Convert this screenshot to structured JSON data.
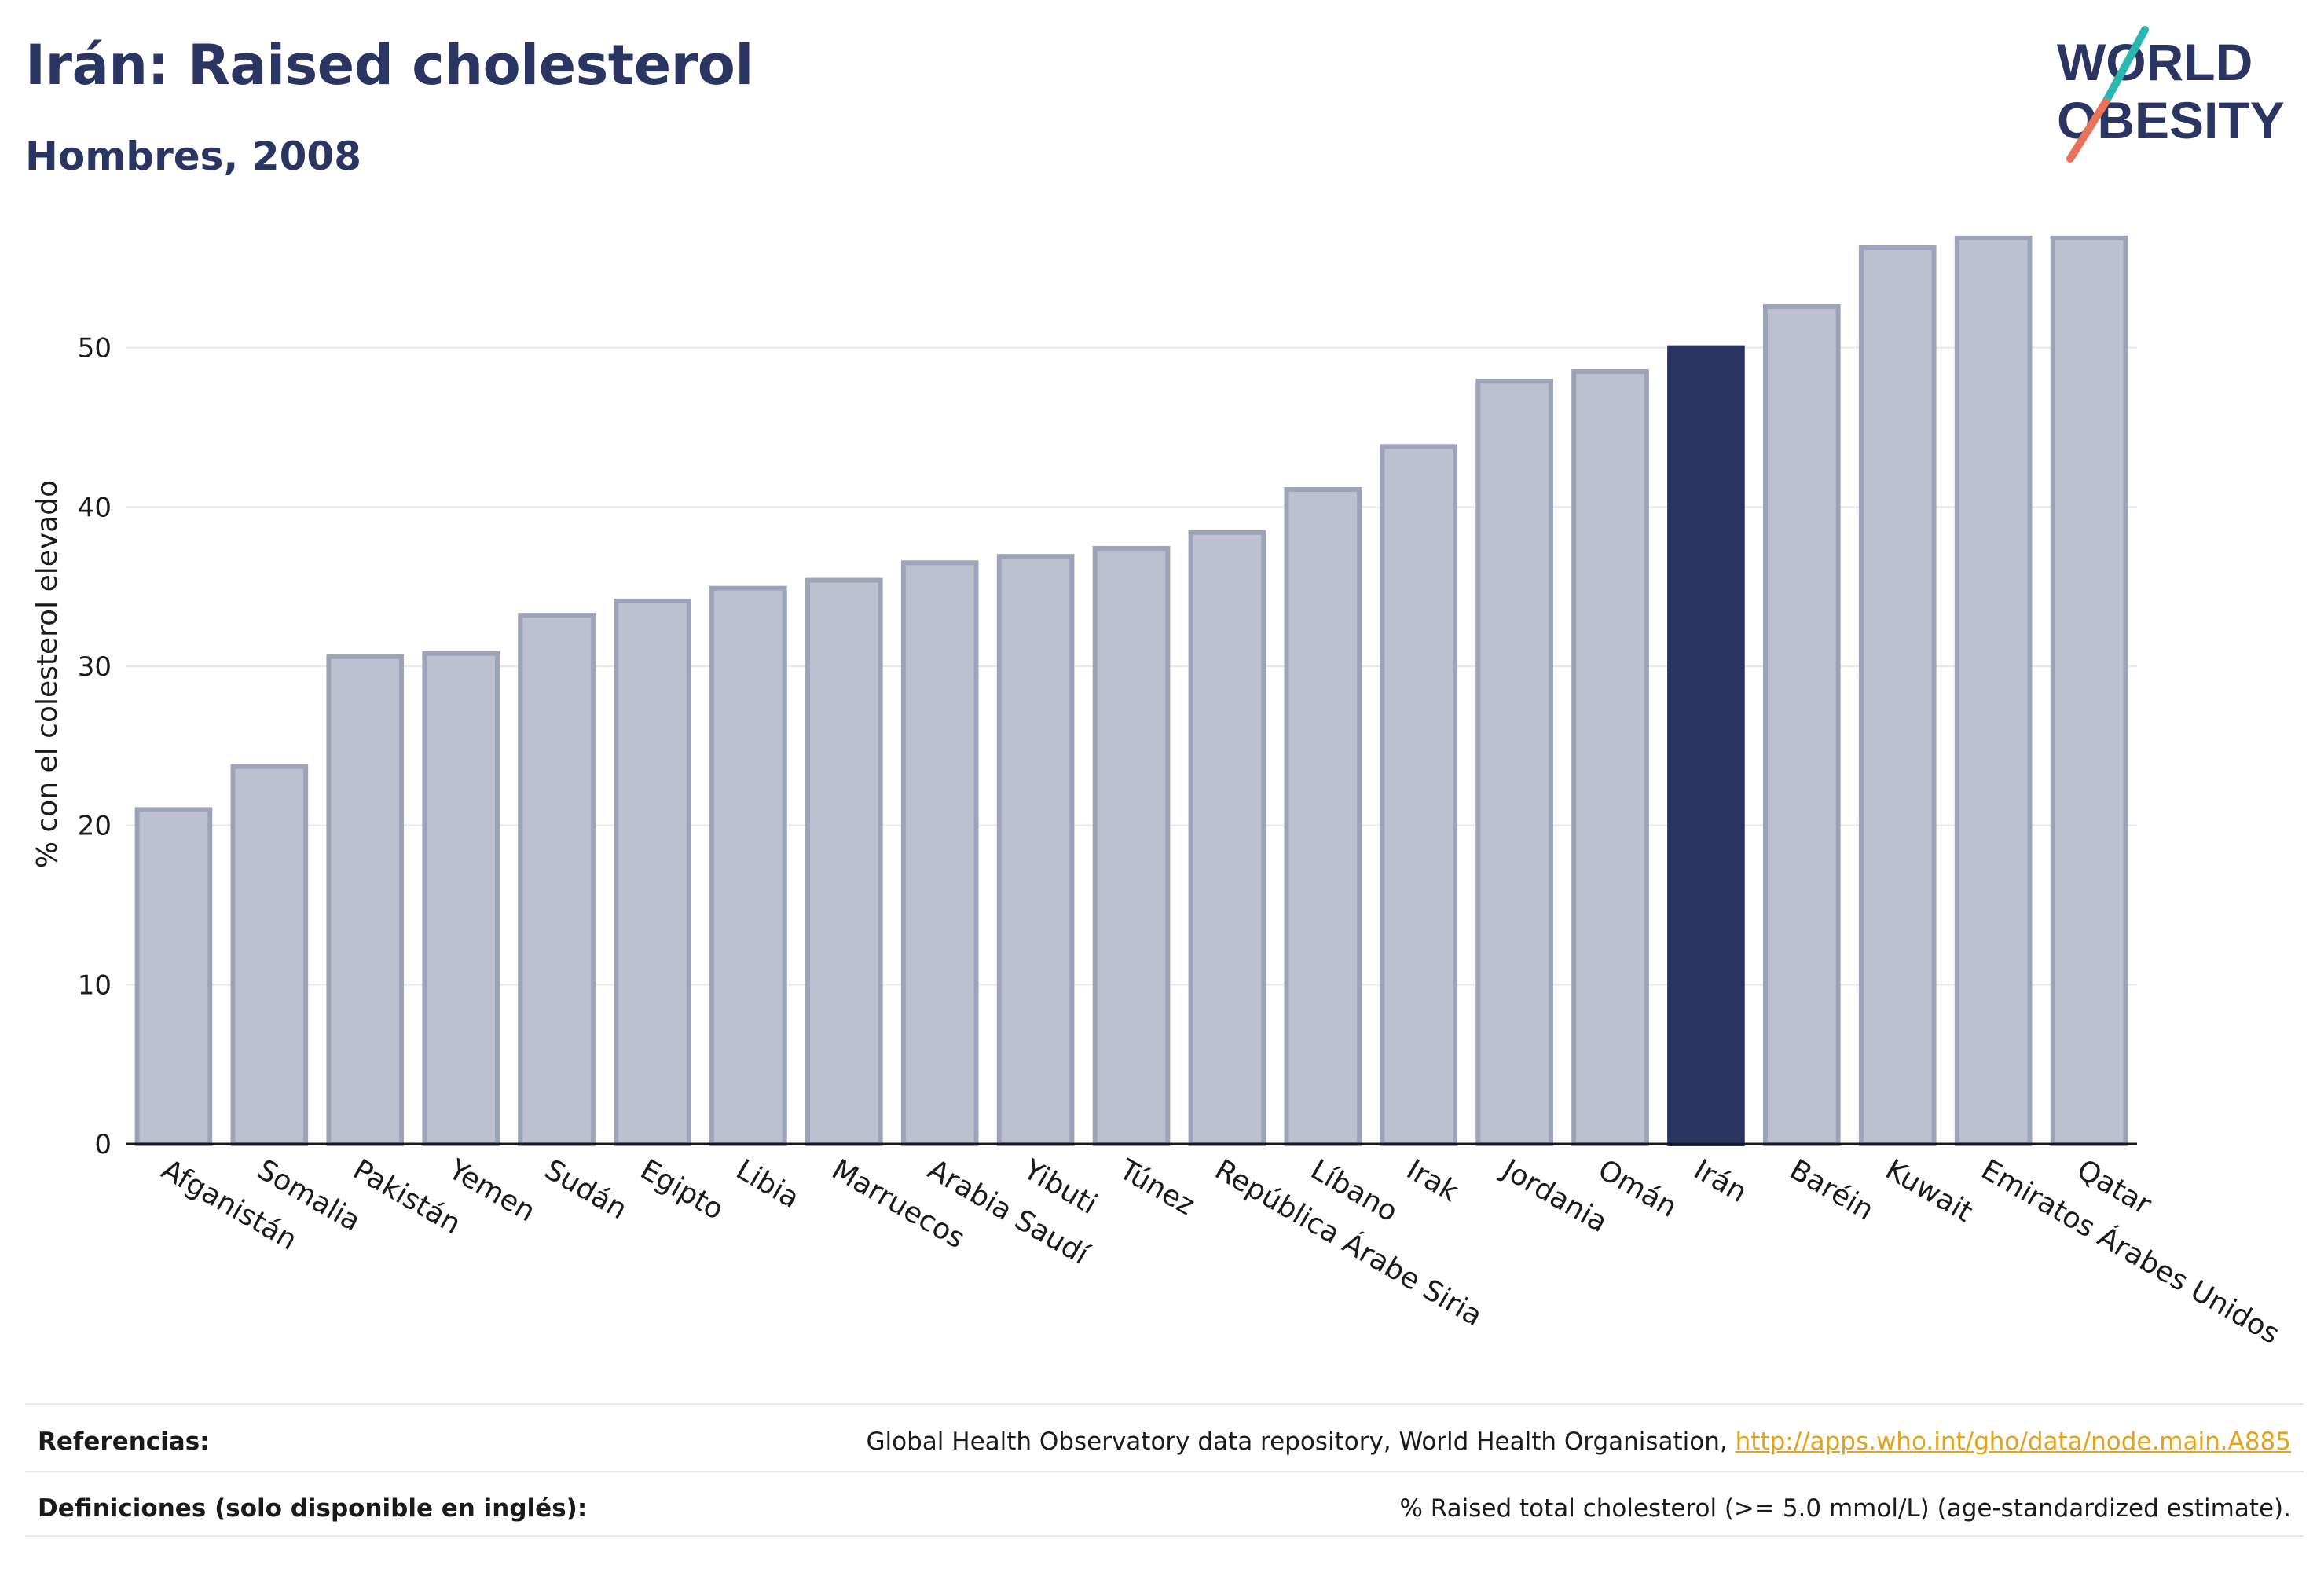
{
  "title": "Irán: Raised cholesterol",
  "subtitle": "Hombres, 2008",
  "logo": {
    "line1": "WORLD",
    "line2": "OBESITY",
    "accent_colors": [
      "#2bb6b0",
      "#e8735a"
    ]
  },
  "colors": {
    "highlight": "#2a3562",
    "bar": "#bcc0cf",
    "bar_border": "#9da3b8",
    "grid": "#e5e7ee",
    "link": "#e3a21a"
  },
  "chart_data": {
    "type": "bar",
    "ylabel": "% con el colesterol elevado",
    "xlabel": "",
    "ylim": [
      0,
      60
    ],
    "yticks": [
      0,
      10,
      20,
      30,
      40,
      50
    ],
    "highlight": "Irán",
    "categories": [
      "Afganistán",
      "Somalia",
      "Pakistán",
      "Yemen",
      "Sudán",
      "Egipto",
      "Libia",
      "Marruecos",
      "Arabia Saudí",
      "Yibuti",
      "Túnez",
      "República Árabe Siria",
      "Líbano",
      "Irak",
      "Jordania",
      "Omán",
      "Irán",
      "Baréin",
      "Kuwait",
      "Emiratos Árabes Unidos",
      "Qatar"
    ],
    "values": [
      21.0,
      23.7,
      30.6,
      30.8,
      33.2,
      34.1,
      34.9,
      35.4,
      36.5,
      36.9,
      37.4,
      38.4,
      41.1,
      43.8,
      47.9,
      48.5,
      50.0,
      52.6,
      56.3,
      56.9,
      56.9
    ],
    "grid": true
  },
  "footer": {
    "references_label": "Referencias:",
    "references_text": "Global Health Observatory data repository, World Health Organisation, ",
    "references_link": "http://apps.who.int/gho/data/node.main.A885",
    "definitions_label": "Definiciones (solo disponible en inglés):",
    "definitions_text": "% Raised total cholesterol (>= 5.0 mmol/L) (age-standardized estimate)."
  }
}
